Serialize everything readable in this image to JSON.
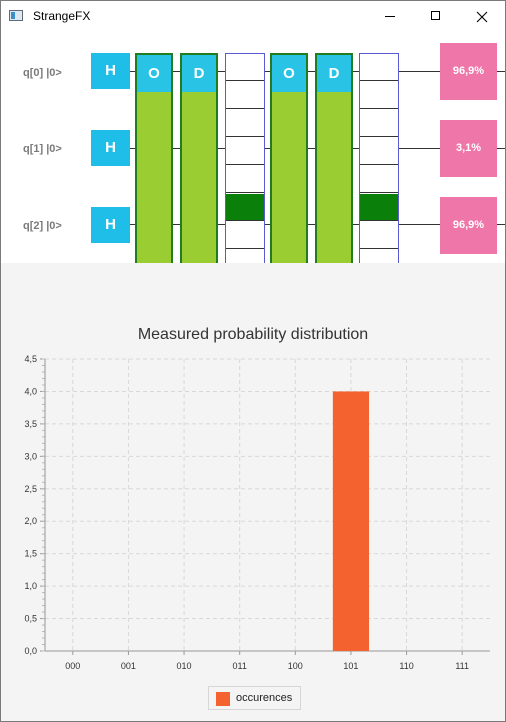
{
  "window": {
    "title": "StrangeFX"
  },
  "circuit": {
    "qubits": [
      {
        "label": "q[0] |0>",
        "probability": "96,9%"
      },
      {
        "label": "q[1] |0>",
        "probability": "3,1%"
      },
      {
        "label": "q[2] |0>",
        "probability": "96,9%"
      }
    ],
    "h_gate_label": "H",
    "oracle_label": "O",
    "diffusion_label": "D"
  },
  "chart_data": {
    "type": "bar",
    "title": "Measured probability distribution",
    "categories": [
      "000",
      "001",
      "010",
      "011",
      "100",
      "101",
      "110",
      "111"
    ],
    "series": [
      {
        "name": "occurences",
        "values": [
          0,
          0,
          0,
          0,
          0,
          4,
          0,
          0
        ],
        "color": "#f4622f"
      }
    ],
    "ylim": [
      0,
      4.5
    ],
    "yticks": [
      "0,0",
      "0,5",
      "1,0",
      "1,5",
      "2,0",
      "2,5",
      "3,0",
      "3,5",
      "4,0",
      "4,5"
    ],
    "grid": true,
    "legend": "bottom-center"
  }
}
